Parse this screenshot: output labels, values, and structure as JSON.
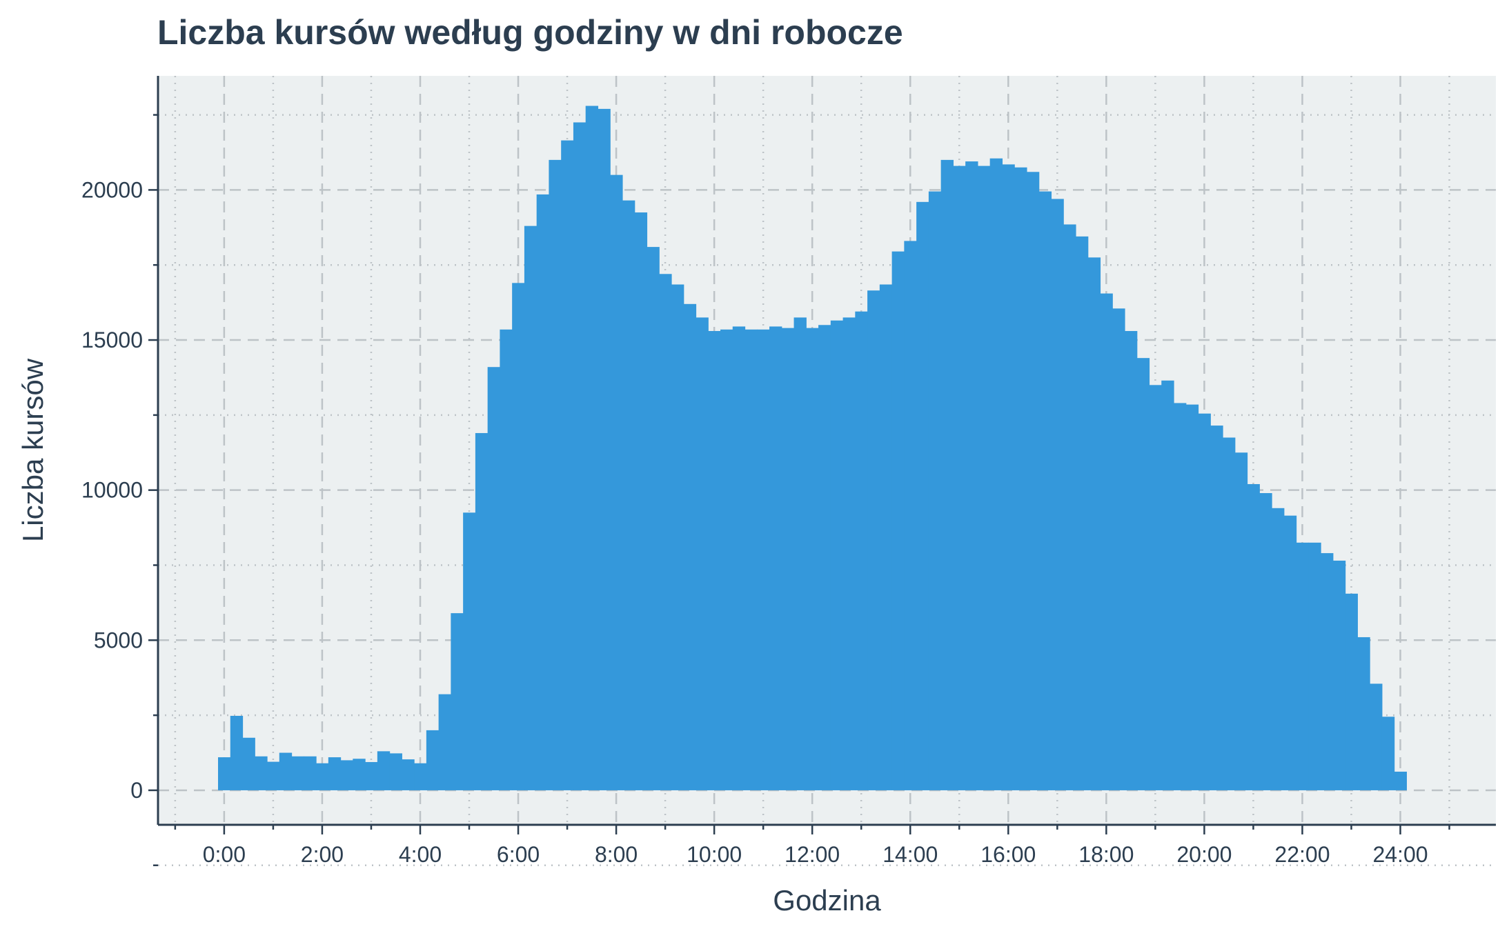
{
  "chart_data": {
    "type": "bar",
    "title": "Liczba kursów według godziny w dni robocze",
    "xlabel": "Godzina",
    "ylabel": "Liczba kursów",
    "x_tick_labels": [
      "0:00",
      "2:00",
      "4:00",
      "6:00",
      "8:00",
      "10:00",
      "12:00",
      "14:00",
      "16:00",
      "18:00",
      "20:00",
      "22:00",
      "24:00"
    ],
    "y_tick_labels": [
      "0",
      "5000",
      "10000",
      "15000",
      "20000"
    ],
    "x_ticks_hours": [
      0,
      2,
      4,
      6,
      8,
      10,
      12,
      14,
      16,
      18,
      20,
      22,
      24
    ],
    "y_ticks": [
      0,
      5000,
      10000,
      15000,
      20000
    ],
    "xlim_hours": [
      -1.35,
      25.95
    ],
    "ylim": [
      -1150,
      23800
    ],
    "bin_width_hours": 0.25,
    "bin_start_hours": -0.125,
    "values": [
      1100,
      2480,
      1750,
      1130,
      950,
      1250,
      1130,
      1130,
      900,
      1100,
      1000,
      1050,
      940,
      1300,
      1230,
      1030,
      900,
      2000,
      3200,
      5900,
      9250,
      11900,
      14100,
      15350,
      16900,
      18800,
      19850,
      21000,
      21650,
      22250,
      22800,
      22700,
      20500,
      19650,
      19250,
      18100,
      17200,
      16850,
      16200,
      15750,
      15300,
      15350,
      15450,
      15350,
      15350,
      15450,
      15400,
      15750,
      15400,
      15500,
      15650,
      15750,
      15950,
      16650,
      16850,
      17950,
      18300,
      19600,
      19950,
      21000,
      20800,
      20950,
      20800,
      21050,
      20850,
      20750,
      20600,
      19950,
      19700,
      18850,
      18450,
      17750,
      16550,
      16050,
      15300,
      14400,
      13500,
      13650,
      12900,
      12850,
      12550,
      12150,
      11750,
      11250,
      10200,
      9900,
      9400,
      9150,
      8250,
      8250,
      7900,
      7650,
      6550,
      5100,
      3550,
      2450,
      620
    ],
    "colors": {
      "bar": "#3498db",
      "panel_background": "#ecf0f1",
      "grid": "#bdc3c7",
      "axis": "#2c3e50",
      "text": "#2c3e50"
    },
    "grid": true,
    "legend": "none"
  }
}
